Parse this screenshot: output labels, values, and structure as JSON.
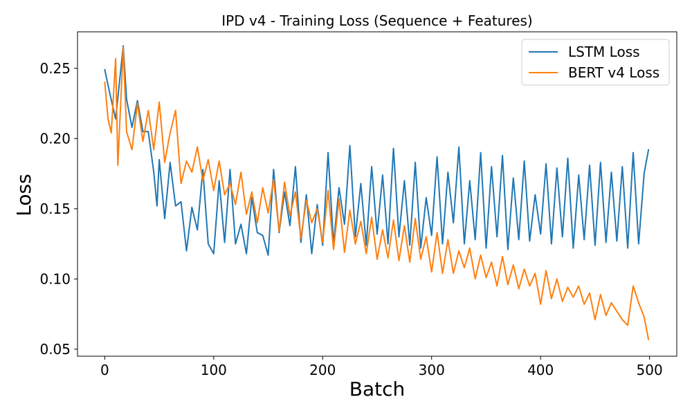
{
  "chart_data": {
    "type": "line",
    "title": "IPD v4 - Training Loss (Sequence + Features)",
    "xlabel": "Batch",
    "ylabel": "Loss",
    "xlim": [
      -25,
      525
    ],
    "ylim": [
      0.045,
      0.276
    ],
    "xticks": [
      0,
      100,
      200,
      300,
      400,
      500
    ],
    "xtick_labels": [
      "0",
      "100",
      "200",
      "300",
      "400",
      "500"
    ],
    "yticks": [
      0.05,
      0.1,
      0.15,
      0.2,
      0.25
    ],
    "ytick_labels": [
      "0.05",
      "0.10",
      "0.15",
      "0.20",
      "0.25"
    ],
    "grid": false,
    "legend_position": "top-right",
    "series": [
      {
        "name": "LSTM Loss",
        "color": "#1f77b4",
        "x": [
          0,
          5,
          10,
          17,
          20,
          25,
          30,
          35,
          40,
          45,
          48,
          50,
          55,
          60,
          65,
          70,
          75,
          80,
          85,
          90,
          95,
          100,
          105,
          110,
          115,
          120,
          125,
          130,
          135,
          140,
          145,
          150,
          155,
          160,
          165,
          170,
          175,
          180,
          185,
          190,
          195,
          200,
          205,
          210,
          215,
          220,
          225,
          230,
          235,
          240,
          245,
          250,
          255,
          260,
          265,
          270,
          275,
          280,
          285,
          290,
          295,
          300,
          305,
          310,
          315,
          320,
          325,
          330,
          335,
          340,
          345,
          350,
          355,
          360,
          365,
          370,
          375,
          380,
          385,
          390,
          395,
          400,
          405,
          410,
          415,
          420,
          425,
          430,
          435,
          440,
          445,
          450,
          455,
          460,
          465,
          470,
          475,
          480,
          485,
          490,
          495,
          499
        ],
        "values": [
          0.249,
          0.231,
          0.214,
          0.266,
          0.228,
          0.208,
          0.227,
          0.205,
          0.205,
          0.176,
          0.152,
          0.185,
          0.143,
          0.183,
          0.152,
          0.155,
          0.12,
          0.151,
          0.135,
          0.178,
          0.125,
          0.118,
          0.17,
          0.126,
          0.178,
          0.125,
          0.139,
          0.118,
          0.158,
          0.133,
          0.131,
          0.117,
          0.178,
          0.133,
          0.162,
          0.138,
          0.18,
          0.126,
          0.16,
          0.118,
          0.153,
          0.124,
          0.19,
          0.125,
          0.165,
          0.139,
          0.195,
          0.13,
          0.168,
          0.124,
          0.18,
          0.132,
          0.174,
          0.125,
          0.193,
          0.13,
          0.17,
          0.124,
          0.183,
          0.122,
          0.158,
          0.131,
          0.187,
          0.125,
          0.176,
          0.14,
          0.194,
          0.125,
          0.17,
          0.128,
          0.19,
          0.122,
          0.18,
          0.13,
          0.188,
          0.121,
          0.172,
          0.128,
          0.184,
          0.127,
          0.16,
          0.132,
          0.182,
          0.125,
          0.179,
          0.13,
          0.186,
          0.122,
          0.174,
          0.128,
          0.181,
          0.124,
          0.183,
          0.126,
          0.176,
          0.127,
          0.18,
          0.122,
          0.19,
          0.125,
          0.175,
          0.192
        ]
      },
      {
        "name": "BERT v4 Loss",
        "color": "#ff7f0e",
        "x": [
          0,
          3,
          6,
          10,
          12,
          17,
          20,
          25,
          30,
          35,
          40,
          45,
          50,
          55,
          60,
          65,
          70,
          75,
          80,
          85,
          90,
          95,
          100,
          105,
          110,
          115,
          120,
          125,
          130,
          135,
          140,
          145,
          150,
          155,
          160,
          165,
          170,
          175,
          180,
          185,
          190,
          195,
          200,
          205,
          210,
          215,
          220,
          225,
          230,
          235,
          240,
          245,
          250,
          255,
          260,
          265,
          270,
          275,
          280,
          285,
          290,
          295,
          300,
          305,
          310,
          315,
          320,
          325,
          330,
          335,
          340,
          345,
          350,
          355,
          360,
          365,
          370,
          375,
          380,
          385,
          390,
          395,
          400,
          405,
          410,
          415,
          420,
          425,
          430,
          435,
          440,
          445,
          450,
          455,
          460,
          465,
          470,
          475,
          480,
          485,
          490,
          495,
          499
        ],
        "values": [
          0.24,
          0.214,
          0.204,
          0.257,
          0.181,
          0.265,
          0.205,
          0.192,
          0.225,
          0.198,
          0.22,
          0.192,
          0.226,
          0.183,
          0.204,
          0.22,
          0.168,
          0.184,
          0.176,
          0.194,
          0.17,
          0.185,
          0.163,
          0.184,
          0.16,
          0.168,
          0.153,
          0.176,
          0.146,
          0.162,
          0.14,
          0.165,
          0.147,
          0.171,
          0.134,
          0.169,
          0.145,
          0.162,
          0.129,
          0.156,
          0.14,
          0.15,
          0.126,
          0.163,
          0.121,
          0.157,
          0.119,
          0.149,
          0.125,
          0.141,
          0.118,
          0.144,
          0.114,
          0.135,
          0.115,
          0.142,
          0.113,
          0.138,
          0.112,
          0.143,
          0.114,
          0.13,
          0.105,
          0.133,
          0.104,
          0.128,
          0.104,
          0.12,
          0.108,
          0.122,
          0.1,
          0.117,
          0.101,
          0.112,
          0.095,
          0.116,
          0.096,
          0.11,
          0.093,
          0.107,
          0.095,
          0.104,
          0.082,
          0.106,
          0.086,
          0.1,
          0.084,
          0.094,
          0.087,
          0.095,
          0.082,
          0.09,
          0.071,
          0.089,
          0.074,
          0.083,
          0.077,
          0.071,
          0.067,
          0.095,
          0.083,
          0.073,
          0.057
        ]
      }
    ]
  }
}
